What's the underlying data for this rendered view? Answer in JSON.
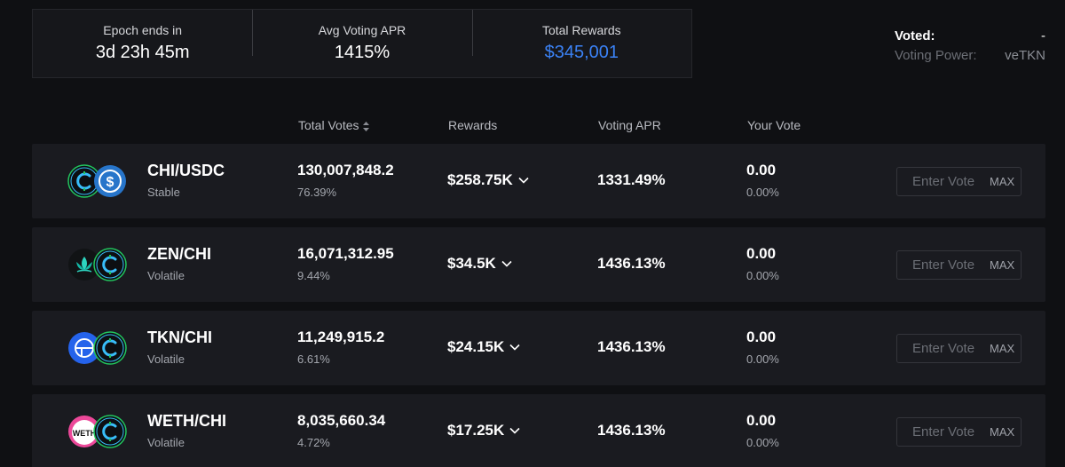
{
  "stats": {
    "epoch_label": "Epoch ends in",
    "epoch_value": "3d 23h 45m",
    "apr_label": "Avg Voting APR",
    "apr_value": "1415%",
    "rewards_label": "Total Rewards",
    "rewards_value": "$345,001"
  },
  "voted": {
    "voted_label": "Voted:",
    "voted_value": "-",
    "power_label": "Voting Power:",
    "power_value": "veTKN"
  },
  "headers": {
    "total_votes": "Total Votes",
    "rewards": "Rewards",
    "voting_apr": "Voting APR",
    "your_vote": "Your Vote"
  },
  "rows": [
    {
      "pair": "CHI/USDC",
      "type": "Stable",
      "votes": "130,007,848.2",
      "votes_pct": "76.39%",
      "rewards": "$258.75K",
      "apr": "1331.49%",
      "your_vote": "0.00",
      "your_pct": "0.00%",
      "placeholder": "Enter Vote",
      "max": "MAX",
      "logo_b": "usdc",
      "logo_b_text": "$"
    },
    {
      "pair": "ZEN/CHI",
      "type": "Volatile",
      "votes": "16,071,312.95",
      "votes_pct": "9.44%",
      "rewards": "$34.5K",
      "apr": "1436.13%",
      "your_vote": "0.00",
      "your_pct": "0.00%",
      "placeholder": "Enter Vote",
      "max": "MAX",
      "logo_a": "zen"
    },
    {
      "pair": "TKN/CHI",
      "type": "Volatile",
      "votes": "11,249,915.2",
      "votes_pct": "6.61%",
      "rewards": "$24.15K",
      "apr": "1436.13%",
      "your_vote": "0.00",
      "your_pct": "0.00%",
      "placeholder": "Enter Vote",
      "max": "MAX",
      "logo_a": "tkn"
    },
    {
      "pair": "WETH/CHI",
      "type": "Volatile",
      "votes": "8,035,660.34",
      "votes_pct": "4.72%",
      "rewards": "$17.25K",
      "apr": "1436.13%",
      "your_vote": "0.00",
      "your_pct": "0.00%",
      "placeholder": "Enter Vote",
      "max": "MAX",
      "logo_a": "weth",
      "logo_a_text": "WETH"
    }
  ],
  "colors": {
    "accent_blue": "#3b82f6",
    "chi_green": "#22c55e",
    "chi_cyan": "#38bdf8",
    "usdc_blue": "#2775ca"
  }
}
